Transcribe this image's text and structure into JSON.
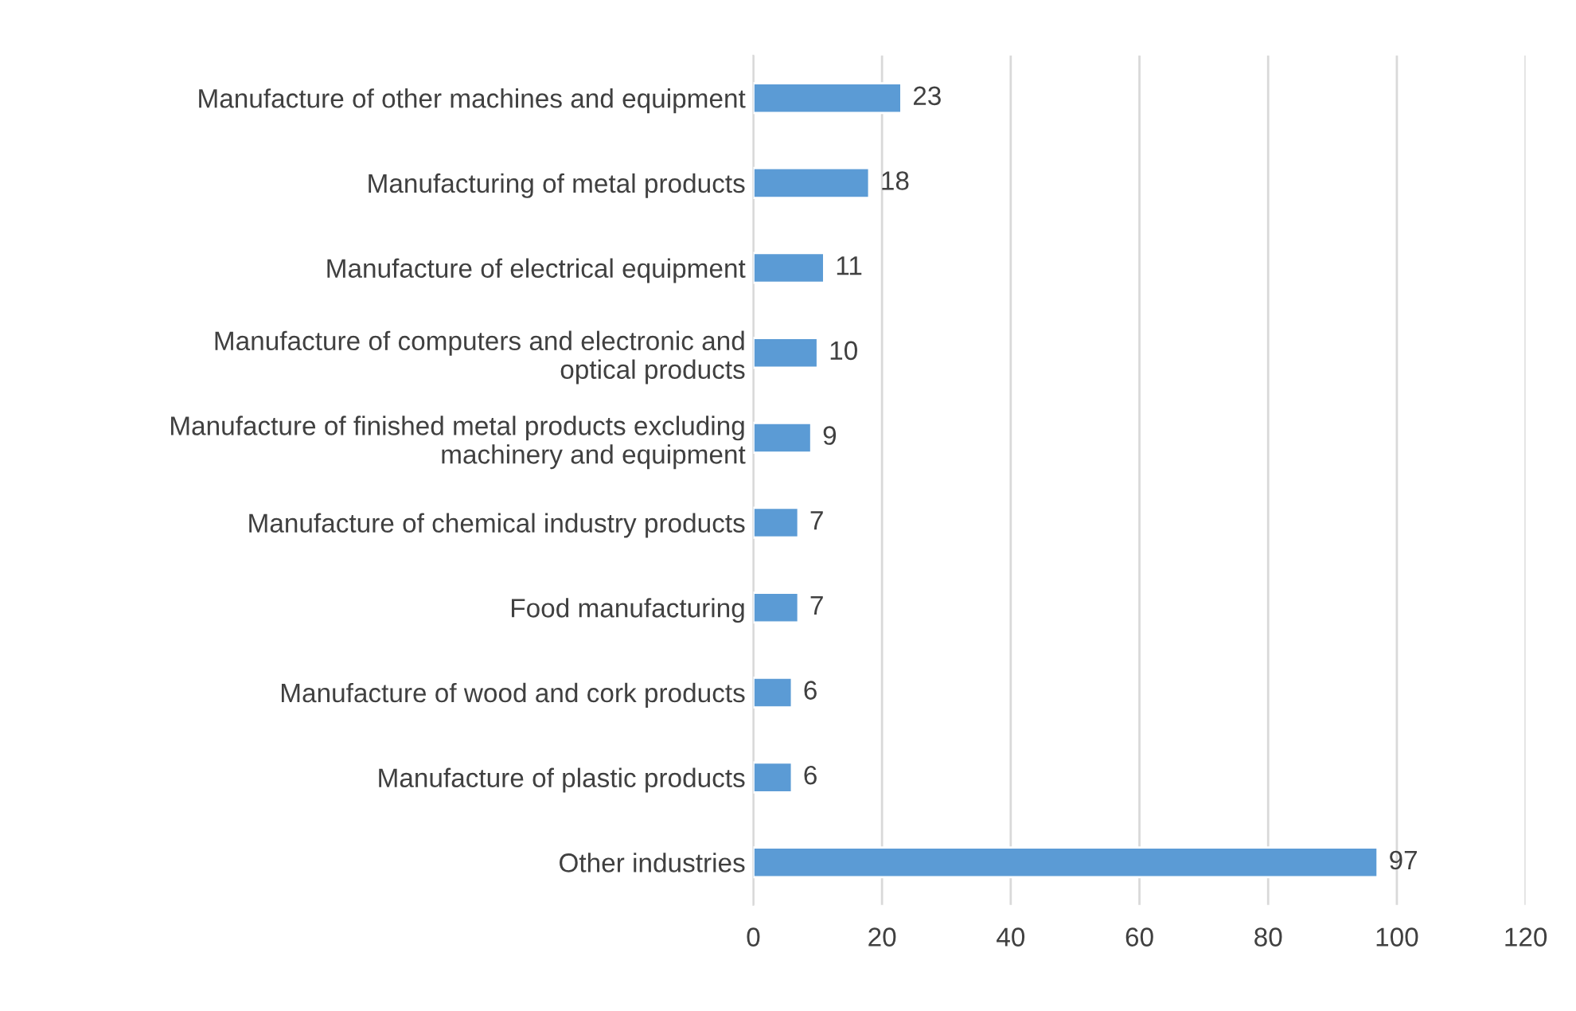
{
  "chart_data": {
    "type": "bar",
    "orientation": "horizontal",
    "categories": [
      "Manufacture of other machines and equipment",
      "Manufacturing of metal products",
      "Manufacture of electrical equipment",
      "Manufacture of computers and electronic and\noptical products",
      "Manufacture of finished metal products excluding\nmachinery and equipment",
      "Manufacture of chemical industry products",
      "Food manufacturing",
      "Manufacture of wood and cork products",
      "Manufacture of plastic products",
      "Other industries"
    ],
    "values": [
      23,
      18,
      11,
      10,
      9,
      7,
      7,
      6,
      6,
      97
    ],
    "color": "#5b9bd5",
    "xlim": [
      0,
      120
    ],
    "xticks": [
      0,
      20,
      40,
      60,
      80,
      100,
      120
    ],
    "grid": "x",
    "data_labels": true
  }
}
